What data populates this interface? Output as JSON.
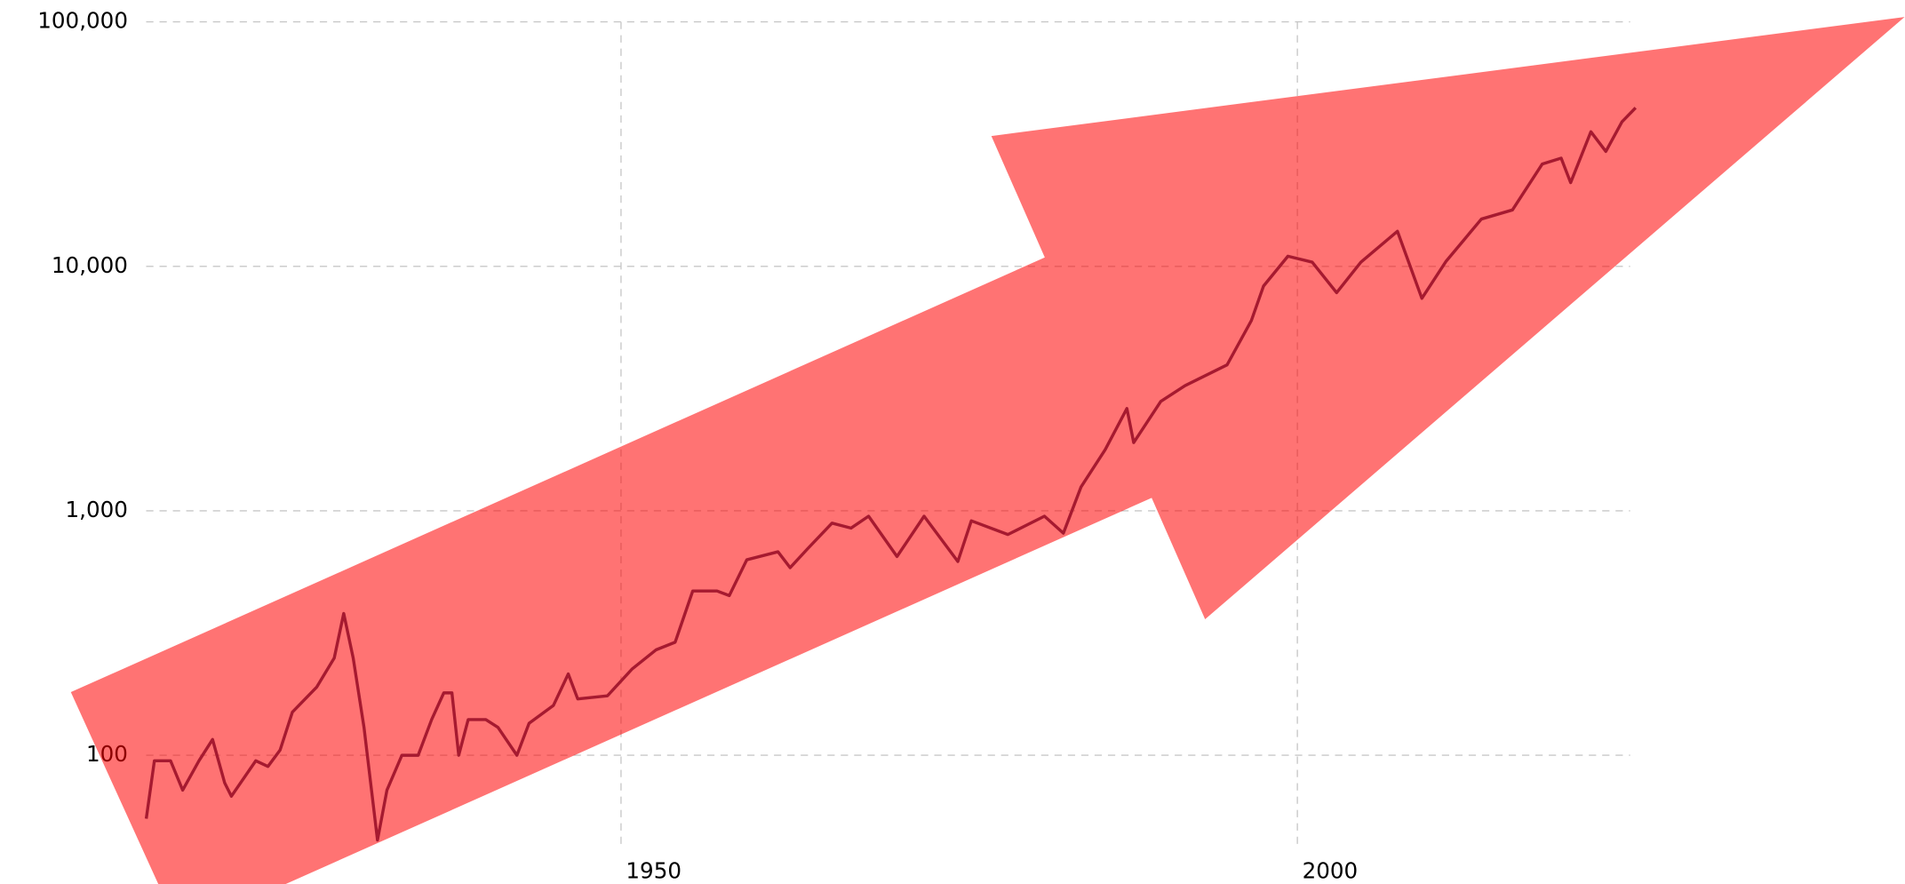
{
  "chart_data": {
    "type": "line",
    "log_scale_y": true,
    "grid": true,
    "x": [
      1914.9,
      1915.5,
      1916.7,
      1917.6,
      1918.8,
      1919.8,
      1920.7,
      1921.2,
      1923,
      1923.9,
      1924.8,
      1925.7,
      1927.5,
      1928.8,
      1929.5,
      1930.2,
      1931,
      1932,
      1932.7,
      1933.8,
      1935,
      1936,
      1936.9,
      1937.5,
      1938,
      1938.7,
      1940,
      1940.9,
      1942.3,
      1943.2,
      1945,
      1946.1,
      1946.8,
      1949,
      1950.8,
      1952.6,
      1954,
      1955.3,
      1957.1,
      1958,
      1959.3,
      1961.6,
      1962.5,
      1963.8,
      1965.6,
      1967,
      1968.3,
      1970.4,
      1972.4,
      1974.9,
      1975.9,
      1978.6,
      1981.3,
      1982.7,
      1984,
      1985.8,
      1987.4,
      1987.9,
      1989.9,
      1991.7,
      1994.8,
      1996.6,
      1997.5,
      1999.3,
      2001.1,
      2002.9,
      2004.7,
      2007.4,
      2009.2,
      2011,
      2013.6,
      2015.9,
      2018.1,
      2019.5,
      2020.2,
      2021.7,
      2022.8,
      2024,
      2025
    ],
    "series": [
      {
        "color": "#3b3a6a",
        "values": [
          55,
          95,
          95,
          72,
          95,
          116,
          77,
          68,
          95,
          90,
          105,
          150,
          190,
          250,
          380,
          250,
          130,
          45,
          72,
          100,
          100,
          140,
          180,
          180,
          100,
          140,
          140,
          130,
          100,
          135,
          160,
          215,
          170,
          175,
          225,
          270,
          290,
          470,
          470,
          450,
          630,
          680,
          585,
          700,
          890,
          850,
          950,
          650,
          950,
          620,
          910,
          800,
          950,
          810,
          1250,
          1780,
          2620,
          1900,
          2800,
          3250,
          3950,
          6000,
          8300,
          11000,
          10400,
          7800,
          10400,
          13900,
          7400,
          10500,
          15600,
          17000,
          26200,
          27700,
          22000,
          35500,
          29500,
          39000,
          44500
        ]
      }
    ],
    "xlim": [
      1912.2,
      2024.6
    ],
    "xticks": [
      1950,
      2000
    ],
    "ylim": [
      40.5,
      100000
    ],
    "yticks": [
      {
        "value": 100,
        "label": "100"
      },
      {
        "value": 1000,
        "label": "1,000"
      },
      {
        "value": 10000,
        "label": "10,000"
      },
      {
        "value": 100000,
        "label": "100,000"
      }
    ]
  }
}
